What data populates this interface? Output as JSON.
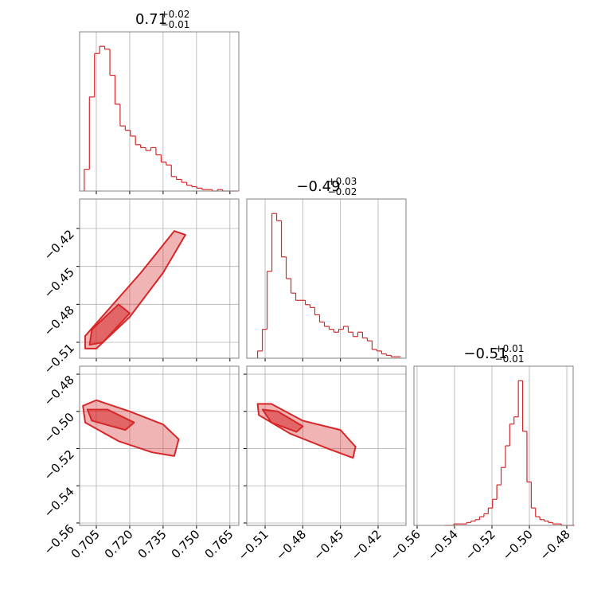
{
  "chart_data": [
    {
      "type": "histogram",
      "title": "0.71",
      "title_sup": "+0.02",
      "title_sub": "−0.01",
      "color": "#d62728",
      "bins": [
        0.6996,
        0.7019,
        0.7042,
        0.7065,
        0.7088,
        0.7111,
        0.7134,
        0.7157,
        0.718,
        0.7203,
        0.7226,
        0.7249,
        0.7272,
        0.7295,
        0.7318,
        0.7341,
        0.7364,
        0.7387,
        0.741,
        0.7433,
        0.7456,
        0.7479,
        0.7502,
        0.7525,
        0.7548,
        0.7571,
        0.7594,
        0.7617,
        0.764,
        0.7663,
        0.7686
      ],
      "values": [
        15,
        65,
        95,
        100,
        98,
        80,
        60,
        45,
        42,
        38,
        32,
        30,
        28,
        30,
        25,
        20,
        18,
        10,
        8,
        6,
        4,
        3,
        2,
        1,
        1,
        0,
        1,
        0,
        0,
        0
      ],
      "xlim": [
        0.6975,
        0.769
      ],
      "ylim": [
        0,
        110
      ],
      "xticks": [
        0.705,
        0.72,
        0.735,
        0.75,
        0.765
      ],
      "grid": true,
      "xtick_labels": false
    },
    {
      "type": "contour",
      "color": "#d62728",
      "contours": [
        {
          "x": [
            0.7,
            0.705,
            0.72,
            0.735,
            0.745,
            0.74,
            0.725,
            0.71,
            0.7
          ],
          "y": [
            -0.515,
            -0.515,
            -0.49,
            -0.455,
            -0.425,
            -0.422,
            -0.455,
            -0.485,
            -0.505
          ]
        },
        {
          "x": [
            0.702,
            0.708,
            0.72,
            0.715,
            0.703
          ],
          "y": [
            -0.512,
            -0.51,
            -0.487,
            -0.48,
            -0.5
          ]
        }
      ],
      "xlim": [
        0.6975,
        0.769
      ],
      "ylim": [
        -0.5226,
        -0.3967
      ],
      "xticks": [
        0.705,
        0.72,
        0.735,
        0.75,
        0.765
      ],
      "yticks": [
        {
          "value": -0.51,
          "label": "−0.51"
        },
        {
          "value": -0.48,
          "label": "−0.48"
        },
        {
          "value": -0.45,
          "label": "−0.45"
        },
        {
          "value": -0.42,
          "label": "−0.42"
        }
      ],
      "grid": true,
      "xtick_labels": false,
      "ytick_labels": true
    },
    {
      "type": "histogram",
      "title": "−0.49",
      "title_sup": "+0.03",
      "title_sub": "−0.02",
      "color": "#d62728",
      "bins": [
        -0.516,
        -0.5122,
        -0.5084,
        -0.5046,
        -0.5008,
        -0.497,
        -0.4932,
        -0.4894,
        -0.4856,
        -0.4818,
        -0.478,
        -0.4742,
        -0.4704,
        -0.4666,
        -0.4628,
        -0.459,
        -0.4552,
        -0.4514,
        -0.4476,
        -0.4438,
        -0.44,
        -0.4362,
        -0.4324,
        -0.4286,
        -0.4248,
        -0.421,
        -0.4172,
        -0.4134,
        -0.4096,
        -0.4058,
        -0.402
      ],
      "values": [
        5,
        20,
        60,
        100,
        95,
        70,
        55,
        45,
        40,
        40,
        37,
        35,
        30,
        25,
        22,
        20,
        18,
        20,
        22,
        18,
        15,
        18,
        14,
        12,
        6,
        5,
        3,
        2,
        1,
        1
      ],
      "xlim": [
        -0.5246,
        -0.3978
      ],
      "ylim": [
        0,
        110
      ],
      "xticks": [
        -0.51,
        -0.48,
        -0.45,
        -0.42
      ],
      "grid": true,
      "xtick_labels": false
    },
    {
      "type": "contour",
      "color": "#d62728",
      "contours": [
        {
          "x": [
            0.699,
            0.705,
            0.72,
            0.735,
            0.742,
            0.74,
            0.73,
            0.715,
            0.7
          ],
          "y": [
            -0.497,
            -0.494,
            -0.5,
            -0.507,
            -0.515,
            -0.524,
            -0.522,
            -0.516,
            -0.506
          ]
        },
        {
          "x": [
            0.701,
            0.71,
            0.722,
            0.718,
            0.703
          ],
          "y": [
            -0.499,
            -0.499,
            -0.506,
            -0.51,
            -0.505
          ]
        }
      ],
      "xlim": [
        0.6975,
        0.769
      ],
      "ylim": [
        -0.5613,
        -0.4757
      ],
      "xticks": [
        0.705,
        {
          "value": 0.72,
          "label": "0.720"
        },
        0.735,
        {
          "value": 0.75,
          "label": "0.750"
        },
        0.765
      ],
      "yticks": [
        {
          "value": -0.56,
          "label": "−0.56"
        },
        {
          "value": -0.54,
          "label": "−0.54"
        },
        {
          "value": -0.52,
          "label": "−0.52"
        },
        {
          "value": -0.5,
          "label": "−0.50"
        },
        {
          "value": -0.48,
          "label": "−0.48"
        }
      ],
      "grid": true,
      "xtick_labels": true,
      "ytick_labels": true
    },
    {
      "type": "contour",
      "color": "#d62728",
      "contours": [
        {
          "x": [
            -0.516,
            -0.505,
            -0.48,
            -0.45,
            -0.438,
            -0.44,
            -0.46,
            -0.49,
            -0.515
          ],
          "y": [
            -0.496,
            -0.496,
            -0.505,
            -0.51,
            -0.519,
            -0.525,
            -0.52,
            -0.512,
            -0.502
          ]
        },
        {
          "x": [
            -0.512,
            -0.5,
            -0.48,
            -0.485,
            -0.505
          ],
          "y": [
            -0.499,
            -0.5,
            -0.508,
            -0.511,
            -0.506
          ]
        }
      ],
      "xlim": [
        -0.5246,
        -0.3978
      ],
      "ylim": [
        -0.5613,
        -0.4757
      ],
      "xticks": [
        {
          "value": -0.51,
          "label": "−0.51"
        },
        {
          "value": -0.48,
          "label": "−0.48"
        },
        {
          "value": -0.45,
          "label": "−0.45"
        },
        {
          "value": -0.42,
          "label": "−0.42"
        }
      ],
      "yticks": [
        -0.56,
        -0.54,
        -0.52,
        -0.5,
        -0.48
      ],
      "grid": true,
      "xtick_labels": true,
      "ytick_labels": false
    },
    {
      "type": "histogram",
      "title": "−0.51",
      "title_sup": "+0.01",
      "title_sub": "−0.01",
      "color": "#d62728",
      "bins": [
        -0.545,
        -0.5427,
        -0.5404,
        -0.5381,
        -0.5358,
        -0.5335,
        -0.5312,
        -0.5289,
        -0.5266,
        -0.5243,
        -0.522,
        -0.5197,
        -0.5174,
        -0.5151,
        -0.5128,
        -0.5105,
        -0.5082,
        -0.5059,
        -0.5036,
        -0.5013,
        -0.499,
        -0.4967,
        -0.4944,
        -0.4921,
        -0.4898,
        -0.4875,
        -0.4852,
        -0.4829,
        -0.4806,
        -0.4783,
        -0.476
      ],
      "values": [
        0,
        0,
        1,
        1,
        1,
        2,
        3,
        4,
        6,
        8,
        12,
        18,
        28,
        40,
        55,
        70,
        75,
        100,
        65,
        30,
        12,
        6,
        4,
        3,
        2,
        1,
        1,
        0,
        0,
        0
      ],
      "xlim": [
        -0.5617,
        -0.4766
      ],
      "ylim": [
        0,
        110
      ],
      "xticks": [
        {
          "value": -0.56,
          "label": "−0.56"
        },
        {
          "value": -0.54,
          "label": "−0.54"
        },
        {
          "value": -0.52,
          "label": "−0.52"
        },
        {
          "value": -0.5,
          "label": "−0.50"
        },
        {
          "value": -0.48,
          "label": "−0.48"
        }
      ],
      "grid": true,
      "xtick_labels": true
    }
  ]
}
